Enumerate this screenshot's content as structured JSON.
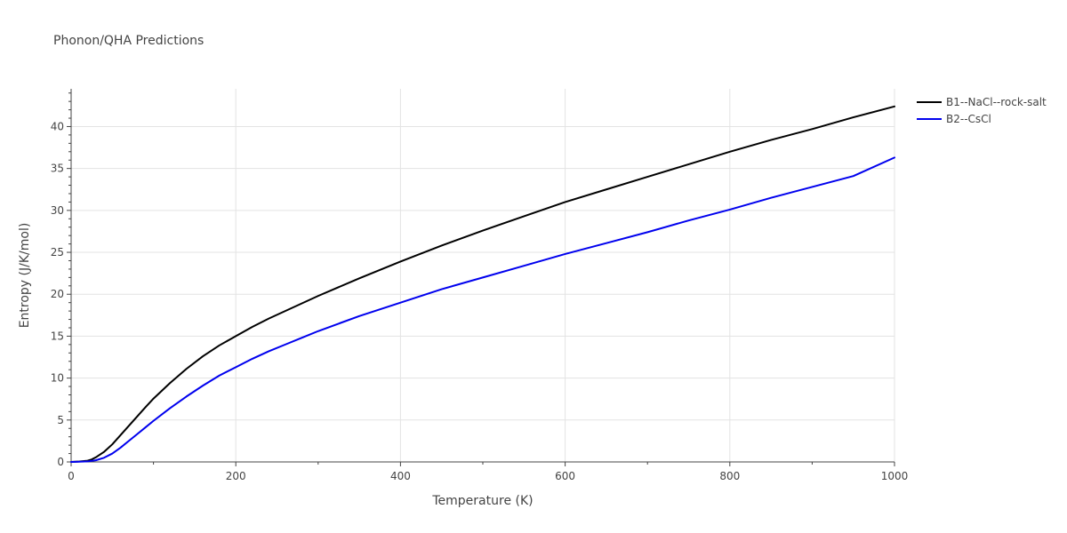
{
  "chart_data": {
    "type": "line",
    "title": "Phonon/QHA Predictions",
    "xlabel": "Temperature (K)",
    "ylabel": "Entropy (J/K/mol)",
    "xlim": [
      0,
      1000
    ],
    "ylim": [
      0,
      44.5
    ],
    "x_ticks": [
      0,
      200,
      400,
      600,
      800,
      1000
    ],
    "y_ticks": [
      0,
      5,
      10,
      15,
      20,
      25,
      30,
      35,
      40
    ],
    "grid": true,
    "legend_position": "top-right",
    "series": [
      {
        "name": "B1--NaCl--rock-salt",
        "color": "#000000",
        "x": [
          0,
          10,
          20,
          25,
          30,
          40,
          50,
          60,
          70,
          80,
          90,
          100,
          120,
          140,
          160,
          180,
          200,
          220,
          240,
          260,
          280,
          300,
          350,
          400,
          450,
          500,
          550,
          600,
          650,
          700,
          750,
          800,
          850,
          900,
          950,
          1000
        ],
        "y": [
          0,
          0.05,
          0.15,
          0.3,
          0.55,
          1.2,
          2.1,
          3.2,
          4.3,
          5.4,
          6.5,
          7.55,
          9.4,
          11.1,
          12.6,
          13.9,
          15.0,
          16.1,
          17.1,
          18.0,
          18.9,
          19.8,
          21.9,
          23.9,
          25.8,
          27.6,
          29.3,
          31.0,
          32.5,
          34.0,
          35.5,
          37.0,
          38.4,
          39.7,
          41.1,
          42.4
        ]
      },
      {
        "name": "B2--CsCl",
        "color": "#0000ee",
        "x": [
          0,
          10,
          20,
          30,
          40,
          50,
          60,
          70,
          80,
          90,
          100,
          120,
          140,
          160,
          180,
          200,
          220,
          240,
          260,
          280,
          300,
          350,
          400,
          450,
          500,
          550,
          600,
          650,
          700,
          750,
          800,
          850,
          900,
          950,
          1000
        ],
        "y": [
          0,
          0.02,
          0.06,
          0.2,
          0.5,
          1.0,
          1.7,
          2.5,
          3.3,
          4.1,
          4.9,
          6.4,
          7.8,
          9.1,
          10.3,
          11.3,
          12.3,
          13.2,
          14.0,
          14.8,
          15.6,
          17.4,
          19.0,
          20.6,
          22.0,
          23.4,
          24.8,
          26.1,
          27.4,
          28.8,
          30.1,
          31.5,
          32.8,
          34.1,
          36.3
        ]
      }
    ]
  }
}
